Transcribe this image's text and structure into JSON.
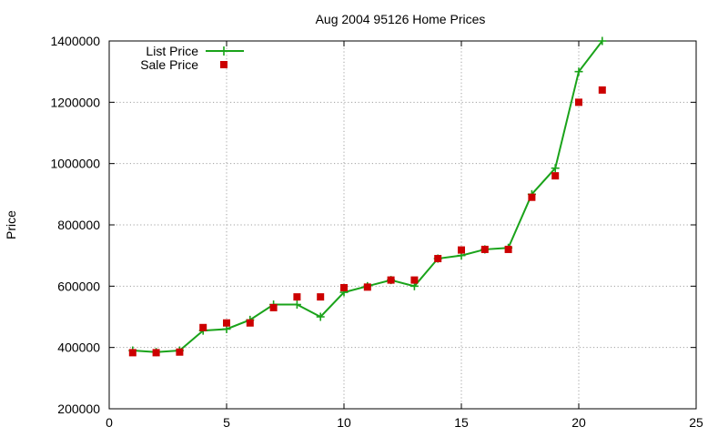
{
  "chart_data": {
    "type": "line",
    "title": "Aug 2004 95126 Home Prices",
    "xlabel": "",
    "ylabel": "Price",
    "xlim": [
      0,
      25
    ],
    "ylim": [
      200000,
      1400000
    ],
    "x_ticks": [
      0,
      5,
      10,
      15,
      20,
      25
    ],
    "y_ticks": [
      200000,
      400000,
      600000,
      800000,
      1000000,
      1200000,
      1400000
    ],
    "x_tick_labels": [
      "0",
      "5",
      "10",
      "15",
      "20",
      "25"
    ],
    "y_tick_labels": [
      "200000",
      "400000",
      "600000",
      "800000",
      "1000000",
      "1200000",
      "1400000"
    ],
    "grid": true,
    "legend_position": "top-left",
    "series": [
      {
        "name": "List Price",
        "style": "lines+crosses",
        "color": "#1aa31a",
        "x": [
          1,
          2,
          3,
          4,
          5,
          6,
          7,
          8,
          9,
          10,
          11,
          12,
          13,
          14,
          15,
          16,
          17,
          18,
          19,
          20,
          21
        ],
        "y": [
          390000,
          385000,
          390000,
          455000,
          460000,
          490000,
          540000,
          540000,
          500000,
          580000,
          600000,
          620000,
          600000,
          690000,
          700000,
          720000,
          725000,
          900000,
          985000,
          1300000,
          1400000
        ]
      },
      {
        "name": "Sale Price",
        "style": "squares",
        "color": "#cc0000",
        "x": [
          1,
          2,
          3,
          4,
          5,
          6,
          7,
          8,
          9,
          10,
          11,
          12,
          13,
          14,
          15,
          16,
          17,
          18,
          19,
          20,
          21
        ],
        "y": [
          383000,
          383000,
          385000,
          465000,
          480000,
          480000,
          530000,
          565000,
          565000,
          595000,
          597000,
          620000,
          620000,
          690000,
          718000,
          720000,
          720000,
          890000,
          960000,
          1200000,
          1240000
        ]
      }
    ]
  }
}
